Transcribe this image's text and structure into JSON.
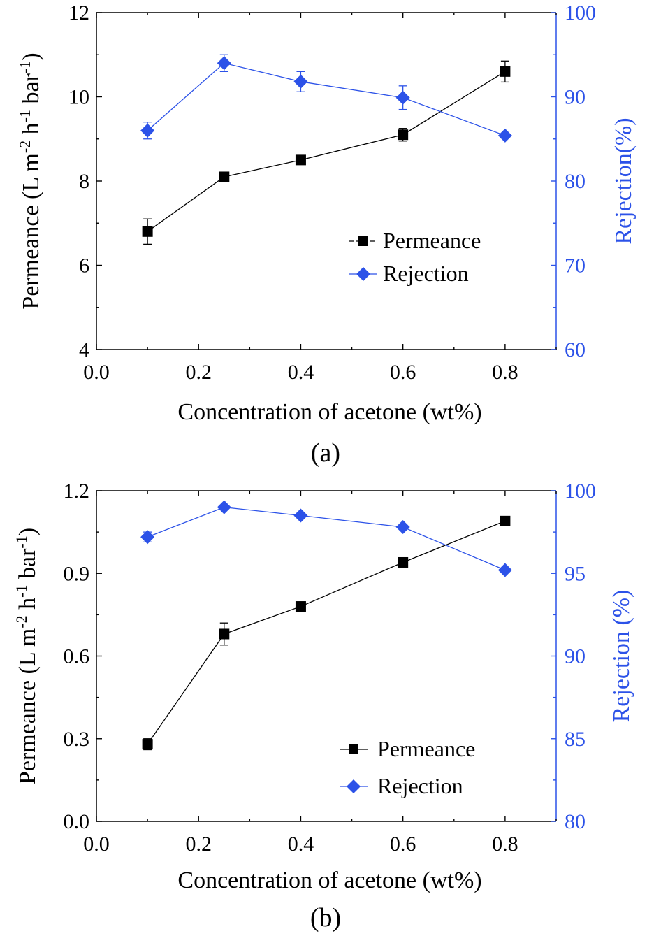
{
  "colors": {
    "permeance": "#000000",
    "rejection": "#2c52e8"
  },
  "chart_data": [
    {
      "type": "line",
      "panel_label": "(a)",
      "xlabel": "Concentration of acetone (wt%)",
      "ylabel": "Permeance (L m-2 h-1 bar-1)",
      "ylabel_parts": {
        "a": "Permeance (L m",
        "b": "-2",
        "c": " h",
        "d": "-1",
        "e": " bar",
        "f": "-1",
        "g": ")"
      },
      "y2label": "Rejection(%)",
      "xlim": [
        0.0,
        0.9
      ],
      "ylim": [
        4,
        12
      ],
      "y2lim": [
        60,
        100
      ],
      "x_ticks": [
        "0.0",
        "0.2",
        "0.4",
        "0.6",
        "0.8"
      ],
      "x_tick_values": [
        0.0,
        0.2,
        0.4,
        0.6,
        0.8
      ],
      "y_ticks": [
        "4",
        "6",
        "8",
        "10",
        "12"
      ],
      "y_tick_values": [
        4,
        6,
        8,
        10,
        12
      ],
      "y2_ticks": [
        "60",
        "70",
        "80",
        "90",
        "100"
      ],
      "y2_tick_values": [
        60,
        70,
        80,
        90,
        100
      ],
      "x": [
        0.1,
        0.25,
        0.4,
        0.6,
        0.8
      ],
      "series": [
        {
          "name": "Permeance",
          "axis": "left",
          "marker": "square",
          "values": [
            6.8,
            8.1,
            8.5,
            9.1,
            10.6
          ],
          "errors": [
            0.3,
            0.05,
            0.05,
            0.15,
            0.25
          ]
        },
        {
          "name": "Rejection",
          "axis": "right",
          "marker": "diamond",
          "values": [
            86.0,
            94.0,
            91.8,
            89.9,
            85.4
          ],
          "errors": [
            1.0,
            1.0,
            1.2,
            1.4,
            0.3
          ]
        }
      ],
      "legend": {
        "position": "center-right",
        "entries": [
          "Permeance",
          "Rejection"
        ]
      },
      "grid": false
    },
    {
      "type": "line",
      "panel_label": "(b)",
      "xlabel": "Concentration of acetone (wt%)",
      "ylabel": "Permeance (L m-2 h-1 bar-1)",
      "ylabel_parts": {
        "a": "Permeance (L m",
        "b": "-2",
        "c": " h",
        "d": "-1",
        "e": " bar",
        "f": "-1",
        "g": ")"
      },
      "y2label": "Rejection (%)",
      "xlim": [
        0.0,
        0.9
      ],
      "ylim": [
        0.0,
        1.2
      ],
      "y2lim": [
        80,
        100
      ],
      "x_ticks": [
        "0.0",
        "0.2",
        "0.4",
        "0.6",
        "0.8"
      ],
      "x_tick_values": [
        0.0,
        0.2,
        0.4,
        0.6,
        0.8
      ],
      "y_ticks": [
        "0.0",
        "0.3",
        "0.6",
        "0.9",
        "1.2"
      ],
      "y_tick_values": [
        0.0,
        0.3,
        0.6,
        0.9,
        1.2
      ],
      "y2_ticks": [
        "80",
        "85",
        "90",
        "95",
        "100"
      ],
      "y2_tick_values": [
        80,
        85,
        90,
        95,
        100
      ],
      "x": [
        0.1,
        0.25,
        0.4,
        0.6,
        0.8
      ],
      "series": [
        {
          "name": "Permeance",
          "axis": "left",
          "marker": "square",
          "values": [
            0.28,
            0.68,
            0.78,
            0.94,
            1.09
          ],
          "errors": [
            0.02,
            0.04,
            0.015,
            0.005,
            0.005
          ]
        },
        {
          "name": "Rejection",
          "axis": "right",
          "marker": "diamond",
          "values": [
            97.2,
            99.0,
            98.5,
            97.8,
            95.2
          ],
          "errors": [
            0.3,
            0.1,
            0.1,
            0.1,
            0.1
          ]
        }
      ],
      "legend": {
        "position": "bottom-right",
        "entries": [
          "Permeance",
          "Rejection"
        ]
      },
      "grid": false
    }
  ]
}
